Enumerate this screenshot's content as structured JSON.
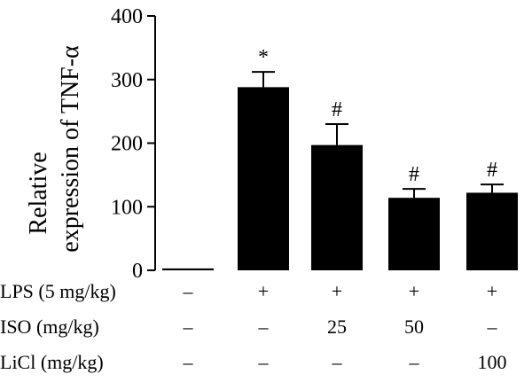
{
  "chart_data": {
    "type": "bar",
    "ylabel_line1": "Relative",
    "ylabel_line2": "expression of TNF-α",
    "ylim": [
      0,
      400
    ],
    "yticks": [
      0,
      100,
      200,
      300,
      400
    ],
    "grid": false,
    "bar_color": "#000000",
    "values": [
      3,
      288,
      197,
      114,
      122
    ],
    "errors": [
      0,
      24,
      33,
      14,
      13
    ],
    "significance": [
      "",
      "*",
      "#",
      "#",
      "#"
    ],
    "conditions": [
      {
        "label": "LPS (5 mg/kg)",
        "values": [
          "–",
          "+",
          "+",
          "+",
          "+"
        ]
      },
      {
        "label": "ISO (mg/kg)",
        "values": [
          "–",
          "–",
          "25",
          "50",
          "–"
        ]
      },
      {
        "label": "LiCl (mg/kg)",
        "values": [
          "–",
          "–",
          "–",
          "–",
          "100"
        ]
      }
    ]
  }
}
